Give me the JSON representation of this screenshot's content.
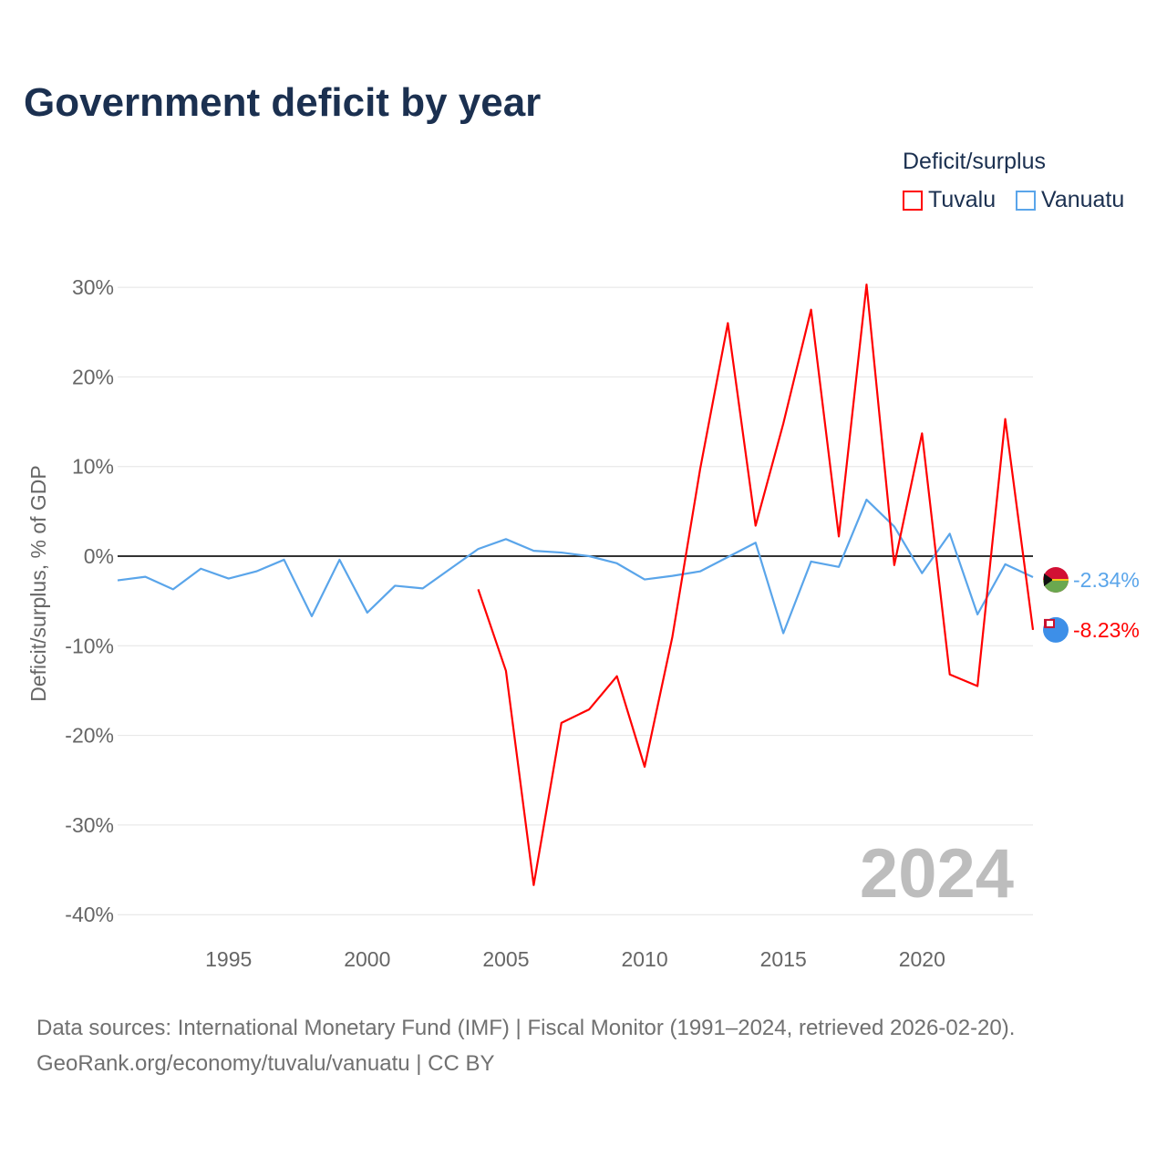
{
  "chart_data": {
    "type": "line",
    "title": "Government deficit by year",
    "ylabel": "Deficit/surplus, % of GDP",
    "xlabel": "",
    "xlim": [
      1991,
      2024
    ],
    "ylim": [
      -40,
      30
    ],
    "yticks": [
      30,
      20,
      10,
      0,
      -10,
      -20,
      -30,
      -40
    ],
    "ytick_labels": [
      "30%",
      "20%",
      "10%",
      "0%",
      "-10%",
      "-20%",
      "-30%",
      "-40%"
    ],
    "xticks": [
      1995,
      2000,
      2005,
      2010,
      2015,
      2020
    ],
    "xtick_labels": [
      "1995",
      "2000",
      "2005",
      "2010",
      "2015",
      "2020"
    ],
    "grid": true,
    "legend_title": "Deficit/surplus",
    "legend_position": "top-right",
    "watermark_year": "2024",
    "series": [
      {
        "name": "Tuvalu",
        "color": "#ff0000",
        "end_label": "-8.23%",
        "flag": "tuvalu-flag",
        "x": [
          2004,
          2005,
          2006,
          2007,
          2008,
          2009,
          2010,
          2011,
          2012,
          2013,
          2014,
          2015,
          2016,
          2017,
          2018,
          2019,
          2020,
          2021,
          2022,
          2023,
          2024
        ],
        "values": [
          -3.7,
          -12.8,
          -36.7,
          -18.6,
          -17.1,
          -13.4,
          -23.5,
          -9.0,
          9.7,
          26.0,
          3.4,
          14.8,
          27.5,
          2.2,
          30.3,
          -1.0,
          13.7,
          -13.2,
          -14.5,
          15.3,
          -8.23
        ]
      },
      {
        "name": "Vanuatu",
        "color": "#5aa5ea",
        "end_label": "-2.34%",
        "flag": "vanuatu-flag",
        "x": [
          1991,
          1992,
          1993,
          1994,
          1995,
          1996,
          1997,
          1998,
          1999,
          2000,
          2001,
          2002,
          2003,
          2004,
          2005,
          2006,
          2007,
          2008,
          2009,
          2010,
          2011,
          2012,
          2013,
          2014,
          2015,
          2016,
          2017,
          2018,
          2019,
          2020,
          2021,
          2022,
          2023,
          2024
        ],
        "values": [
          -2.7,
          -2.3,
          -3.7,
          -1.4,
          -2.5,
          -1.7,
          -0.4,
          -6.7,
          -0.4,
          -6.3,
          -3.3,
          -3.6,
          -1.4,
          0.8,
          1.9,
          0.6,
          0.4,
          0.0,
          -0.8,
          -2.6,
          -2.2,
          -1.7,
          -0.1,
          1.5,
          -8.6,
          -0.6,
          -1.2,
          6.3,
          3.3,
          -1.9,
          2.5,
          -6.5,
          -0.9,
          -2.34
        ]
      }
    ]
  },
  "source_line1": "Data sources: International Monetary Fund (IMF) | Fiscal Monitor (1991–2024, retrieved 2026-02-20).",
  "source_line2": "GeoRank.org/economy/tuvalu/vanuatu | CC BY"
}
